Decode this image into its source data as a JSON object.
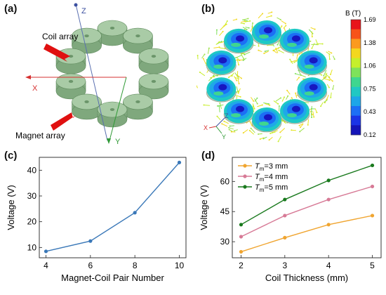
{
  "panels": {
    "a": {
      "letter": "(a)",
      "coil_label": "Coil array",
      "magnet_label": "Magnet array",
      "axes": {
        "z": "Z",
        "x": "X",
        "y": "Y"
      }
    },
    "b": {
      "letter": "(b)",
      "colorbar_title": "B (T)",
      "colorbar_ticks": [
        "1.69",
        "1.38",
        "1.06",
        "0.75",
        "0.43",
        "0.12"
      ],
      "colorbar_colors": [
        "#e8141b",
        "#f7531a",
        "#fb9a1f",
        "#f3d71f",
        "#c5ef2b",
        "#7ee25a",
        "#3fd68f",
        "#21c8c3",
        "#1ea6e8",
        "#1d6ff5",
        "#1b34e6",
        "#1515b8"
      ],
      "axes": {
        "z": "Z",
        "x": "X",
        "y": "Y"
      }
    },
    "c": {
      "letter": "(c)"
    },
    "d": {
      "letter": "(d)"
    }
  },
  "chart_data": [
    {
      "id": "c",
      "type": "line",
      "x": [
        4,
        6,
        8,
        10
      ],
      "series": [
        {
          "values": [
            8.5,
            12.5,
            23.5,
            43.0
          ],
          "color": "#3a78b8"
        }
      ],
      "xlabel": "Magnet-Coil Pair Number",
      "ylabel": "Voltage (V)",
      "xlim": [
        3.7,
        10.3
      ],
      "ylim": [
        6,
        45
      ],
      "xticks": [
        4,
        6,
        8,
        10
      ],
      "yticks": [
        10,
        20,
        30,
        40
      ],
      "grid": false
    },
    {
      "id": "d",
      "type": "line",
      "x": [
        2,
        3,
        4,
        5
      ],
      "series": [
        {
          "name_prefix": "T",
          "name_sub": "m",
          "name_suffix": "=3 mm",
          "values": [
            25.0,
            32.0,
            38.5,
            43.0
          ],
          "color": "#f0a530"
        },
        {
          "name_prefix": "T",
          "name_sub": "m",
          "name_suffix": "=4 mm",
          "values": [
            32.5,
            43.0,
            51.0,
            57.5
          ],
          "color": "#d77a96"
        },
        {
          "name_prefix": "T",
          "name_sub": "m",
          "name_suffix": "=5 mm",
          "values": [
            38.5,
            51.0,
            60.5,
            68.0
          ],
          "color": "#1a7a1e"
        }
      ],
      "xlabel": "Coil Thickness (mm)",
      "ylabel": "Voltage (V)",
      "xlim": [
        1.8,
        5.2
      ],
      "ylim": [
        22,
        72
      ],
      "xticks": [
        2,
        3,
        4,
        5
      ],
      "yticks": [
        30,
        45,
        60
      ],
      "legend": "top-left",
      "grid": false
    }
  ]
}
